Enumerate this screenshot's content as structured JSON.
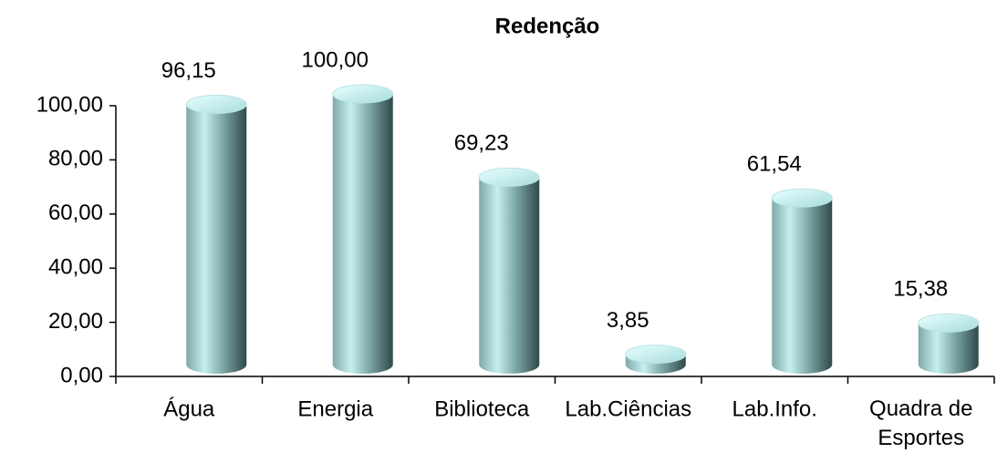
{
  "chart_data": {
    "type": "cylinder-bar",
    "title": "Redenção",
    "categories": [
      "Água",
      "Energia",
      "Biblioteca",
      "Lab.Ciências",
      "Lab.Info.",
      "Quadra de Esportes"
    ],
    "values": [
      96.15,
      100,
      69.23,
      3.85,
      61.54,
      15.38
    ],
    "value_labels": [
      "96,15",
      "100,00",
      "69,23",
      "3,85",
      "61,54",
      "15,38"
    ],
    "color": "#8fc4c4",
    "ylim": [
      0,
      100
    ],
    "yticks": [
      {
        "value": 0,
        "label": "0,00"
      },
      {
        "value": 20,
        "label": "20,00"
      },
      {
        "value": 40,
        "label": "40,00"
      },
      {
        "value": 60,
        "label": "60,00"
      },
      {
        "value": 80,
        "label": "80,00"
      },
      {
        "value": 100,
        "label": "100,00"
      }
    ],
    "grid": false
  }
}
